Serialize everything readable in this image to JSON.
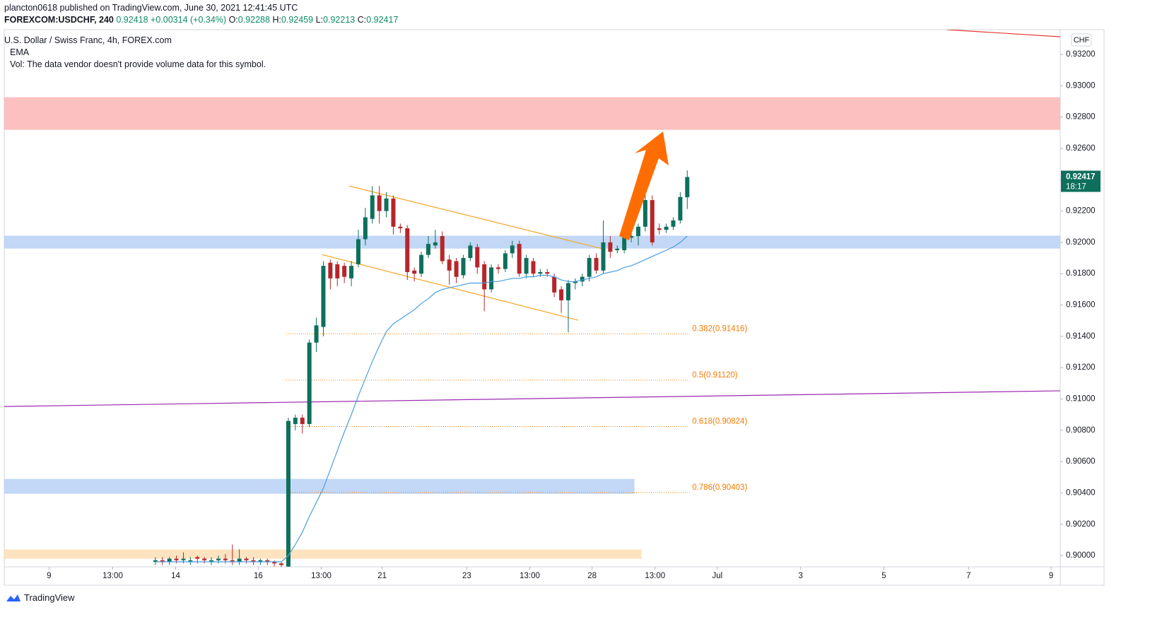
{
  "header": {
    "publisher": "plancton0618 published on TradingView.com, June 30, 2021 12:41:45 UTC",
    "symbol": "FOREXCOM:USDCHF, 240",
    "last": 0.92418,
    "change": "+0.00314 (+0.34%)",
    "ohlc": [
      {
        "label": "O:",
        "value": 0.92288
      },
      {
        "label": "H:",
        "value": 0.92459
      },
      {
        "label": "L:",
        "value": 0.92213
      },
      {
        "label": "C:",
        "value": 0.92417
      }
    ]
  },
  "legend": {
    "title": "U.S. Dollar / Swiss Franc, 4h, FOREX.com",
    "ema": "EMA",
    "vol": "Vol: The data vendor doesn't provide volume data for this symbol."
  },
  "footer": {
    "brand": "TradingView"
  },
  "chart_data": {
    "type": "candlestick",
    "currency": "CHF",
    "countdown": "18:17",
    "up_color": "#0e6f5c",
    "down_color": "#b5262b",
    "ema_color": "#4a9fe0",
    "open": [
      0.8996,
      0.8997,
      0.8996,
      0.8998,
      0.8997,
      0.8996,
      0.8999,
      0.8998,
      0.8996,
      0.8997,
      0.8998,
      0.8997,
      0.8996,
      0.8998,
      0.8997,
      0.8996,
      0.8997,
      0.8996,
      0.8995,
      0.8993,
      0.9084,
      0.9088,
      0.9084,
      0.9136,
      0.9146,
      0.9187,
      0.9186,
      0.9185,
      0.9177,
      0.9186,
      0.9202,
      0.9215,
      0.923,
      0.922,
      0.9228,
      0.921,
      0.9209,
      0.9182,
      0.918,
      0.9192,
      0.9198,
      0.9204,
      0.9189,
      0.9188,
      0.9179,
      0.919,
      0.9197,
      0.9186,
      0.917,
      0.9184,
      0.9183,
      0.9193,
      0.9199,
      0.918,
      0.9188,
      0.918,
      0.9181,
      0.9178,
      0.917,
      0.9163,
      0.9174,
      0.9175,
      0.9178,
      0.919,
      0.9182,
      0.92,
      0.9195,
      0.9195,
      0.9203,
      0.9204,
      0.921,
      0.9227,
      0.9209,
      0.9208,
      0.921,
      0.9214,
      0.92288
    ],
    "high": [
      0.8999,
      0.8999,
      0.8999,
      0.9,
      0.9002,
      0.8999,
      0.9,
      0.8999,
      0.8999,
      0.9,
      0.9001,
      0.9007,
      0.9004,
      0.8999,
      0.8999,
      0.8998,
      0.8998,
      0.8997,
      0.8996,
      0.9088,
      0.909,
      0.909,
      0.9138,
      0.9152,
      0.9188,
      0.9189,
      0.9188,
      0.9187,
      0.9188,
      0.9208,
      0.9222,
      0.9236,
      0.9236,
      0.9232,
      0.923,
      0.9212,
      0.9211,
      0.9184,
      0.9194,
      0.9204,
      0.9208,
      0.9207,
      0.9192,
      0.919,
      0.9192,
      0.92,
      0.9199,
      0.9188,
      0.9186,
      0.9186,
      0.9195,
      0.9201,
      0.9201,
      0.9192,
      0.919,
      0.9183,
      0.9183,
      0.918,
      0.9172,
      0.9176,
      0.9177,
      0.918,
      0.9192,
      0.9193,
      0.9214,
      0.9204,
      0.9198,
      0.9206,
      0.9207,
      0.9212,
      0.9232,
      0.923,
      0.9212,
      0.9212,
      0.9216,
      0.9232,
      0.92459
    ],
    "low": [
      0.8994,
      0.8994,
      0.8994,
      0.8995,
      0.8995,
      0.8994,
      0.8995,
      0.8995,
      0.8994,
      0.8995,
      0.8995,
      0.8994,
      0.8994,
      0.8995,
      0.8994,
      0.8994,
      0.8994,
      0.8993,
      0.8992,
      0.8992,
      0.908,
      0.9078,
      0.9082,
      0.913,
      0.914,
      0.917,
      0.9172,
      0.9174,
      0.9172,
      0.9184,
      0.9198,
      0.9212,
      0.9212,
      0.9216,
      0.9205,
      0.9206,
      0.9176,
      0.9175,
      0.9178,
      0.919,
      0.9196,
      0.9186,
      0.9173,
      0.9174,
      0.9177,
      0.9188,
      0.918,
      0.9156,
      0.9168,
      0.918,
      0.9181,
      0.919,
      0.9178,
      0.9177,
      0.9178,
      0.9178,
      0.9178,
      0.9165,
      0.9155,
      0.91426,
      0.917,
      0.9172,
      0.9175,
      0.918,
      0.918,
      0.919,
      0.9193,
      0.9193,
      0.92,
      0.9198,
      0.9207,
      0.9198,
      0.9205,
      0.9206,
      0.9208,
      0.9212,
      0.92213
    ],
    "close": [
      0.8997,
      0.8996,
      0.8998,
      0.8997,
      0.8998,
      0.8997,
      0.8998,
      0.8997,
      0.8997,
      0.8998,
      0.8997,
      0.8996,
      0.8998,
      0.8997,
      0.8996,
      0.8997,
      0.8996,
      0.8995,
      0.8994,
      0.9086,
      0.9088,
      0.9084,
      0.9136,
      0.9147,
      0.9185,
      0.9177,
      0.9177,
      0.9178,
      0.9185,
      0.9202,
      0.9216,
      0.923,
      0.922,
      0.9228,
      0.921,
      0.9209,
      0.9181,
      0.918,
      0.9192,
      0.9199,
      0.92,
      0.9188,
      0.9182,
      0.9178,
      0.919,
      0.9198,
      0.9184,
      0.917,
      0.9184,
      0.9183,
      0.9193,
      0.9198,
      0.918,
      0.919,
      0.918,
      0.9181,
      0.918,
      0.9168,
      0.9163,
      0.9174,
      0.9175,
      0.9178,
      0.919,
      0.9182,
      0.92,
      0.9194,
      0.9196,
      0.9203,
      0.9204,
      0.921,
      0.9227,
      0.92,
      0.9208,
      0.921,
      0.9214,
      0.9229,
      0.92417
    ],
    "ema": [
      0.8996,
      0.8996,
      0.8996,
      0.8996,
      0.8996,
      0.8996,
      0.8996,
      0.8996,
      0.8996,
      0.8996,
      0.8996,
      0.8996,
      0.8996,
      0.8996,
      0.8996,
      0.8996,
      0.8996,
      0.8996,
      0.8996,
      0.9,
      0.9007,
      0.9015,
      0.9025,
      0.9034,
      0.9043,
      0.9055,
      0.9067,
      0.9079,
      0.909,
      0.9102,
      0.9113,
      0.9124,
      0.9134,
      0.9143,
      0.9148,
      0.9151,
      0.9154,
      0.9157,
      0.9161,
      0.9164,
      0.9168,
      0.917,
      0.9171,
      0.9172,
      0.9173,
      0.9174,
      0.9174,
      0.9174,
      0.9175,
      0.9175,
      0.9176,
      0.9177,
      0.9177,
      0.9178,
      0.9178,
      0.9179,
      0.9179,
      0.9178,
      0.9176,
      0.9175,
      0.9175,
      0.9176,
      0.9177,
      0.9178,
      0.918,
      0.9181,
      0.9182,
      0.9184,
      0.9185,
      0.9187,
      0.9189,
      0.9191,
      0.9193,
      0.9195,
      0.9197,
      0.92,
      0.9204
    ],
    "xlim": [
      -21.6,
      129.3
    ],
    "ylim": [
      0.89928,
      0.93358
    ],
    "xticks": [
      {
        "value": -15.2,
        "label": "9"
      },
      {
        "value": -6.1,
        "label": "13:00"
      },
      {
        "value": 2.9,
        "label": "14"
      },
      {
        "value": 14.7,
        "label": "16"
      },
      {
        "value": 23.7,
        "label": "13:00"
      },
      {
        "value": 32.4,
        "label": "21"
      },
      {
        "value": 44.5,
        "label": "23"
      },
      {
        "value": 53.5,
        "label": "13:00"
      },
      {
        "value": 62.4,
        "label": "28"
      },
      {
        "value": 71.4,
        "label": "13:00"
      },
      {
        "value": 80.3,
        "label": "Jul"
      },
      {
        "value": 92.2,
        "label": "3"
      },
      {
        "value": 104.1,
        "label": "5"
      },
      {
        "value": 116.2,
        "label": "7"
      },
      {
        "value": 128,
        "label": "9"
      }
    ],
    "yticks": [
      {
        "value": 0.932,
        "label": "0.93200"
      },
      {
        "value": 0.93,
        "label": "0.93000"
      },
      {
        "value": 0.928,
        "label": "0.92800"
      },
      {
        "value": 0.926,
        "label": "0.92600"
      },
      {
        "value": 0.924,
        "label": "0.92400"
      },
      {
        "value": 0.922,
        "label": "0.92200"
      },
      {
        "value": 0.92,
        "label": "0.92000"
      },
      {
        "value": 0.918,
        "label": "0.91800"
      },
      {
        "value": 0.916,
        "label": "0.91600"
      },
      {
        "value": 0.914,
        "label": "0.91400"
      },
      {
        "value": 0.912,
        "label": "0.91200"
      },
      {
        "value": 0.91,
        "label": "0.91000"
      },
      {
        "value": 0.908,
        "label": "0.90800"
      },
      {
        "value": 0.906,
        "label": "0.90600"
      },
      {
        "value": 0.904,
        "label": "0.90400"
      },
      {
        "value": 0.902,
        "label": "0.90200"
      },
      {
        "value": 0.9,
        "label": "0.90000"
      }
    ],
    "zones": [
      {
        "color": "#fdb9b9",
        "x": [
          -21.6,
          129.3
        ],
        "y": [
          0.92721,
          0.92924
        ]
      },
      {
        "color": "#bcd4f5",
        "x": [
          -21.6,
          129.3
        ],
        "y": [
          0.91963,
          0.9204
        ]
      },
      {
        "color": "#bcd4f5",
        "x": [
          -21.6,
          68.4
        ],
        "y": [
          0.90397,
          0.90487
        ]
      },
      {
        "color": "#fde0b8",
        "x": [
          -21.6,
          69.4
        ],
        "y": [
          0.89982,
          0.90036
        ]
      }
    ],
    "lines": [
      {
        "color": "#9c27b0",
        "x": [
          -21.6,
          129.3
        ],
        "y": [
          0.90952,
          0.91052
        ]
      },
      {
        "color": "#e53935",
        "x": [
          113.1,
          129.3
        ],
        "y": [
          0.93358,
          0.93313
        ]
      },
      {
        "color": "#f5a623",
        "x": [
          27.7,
          64.3
        ],
        "y": [
          0.9236,
          0.91954
        ]
      },
      {
        "color": "#f5a623",
        "x": [
          23.8,
          60.4
        ],
        "y": [
          0.91922,
          0.91503
        ]
      }
    ],
    "fib": {
      "color": "#f57c00",
      "x": [
        18.7,
        76.3
      ],
      "levels": [
        {
          "label": "0.382(0.91416)",
          "value": 0.91416
        },
        {
          "label": "0.5(0.91120)",
          "value": 0.9112
        },
        {
          "label": "0.618(0.90824)",
          "value": 0.90824
        },
        {
          "label": "0.786(0.90403)",
          "value": 0.90403
        }
      ]
    }
  }
}
